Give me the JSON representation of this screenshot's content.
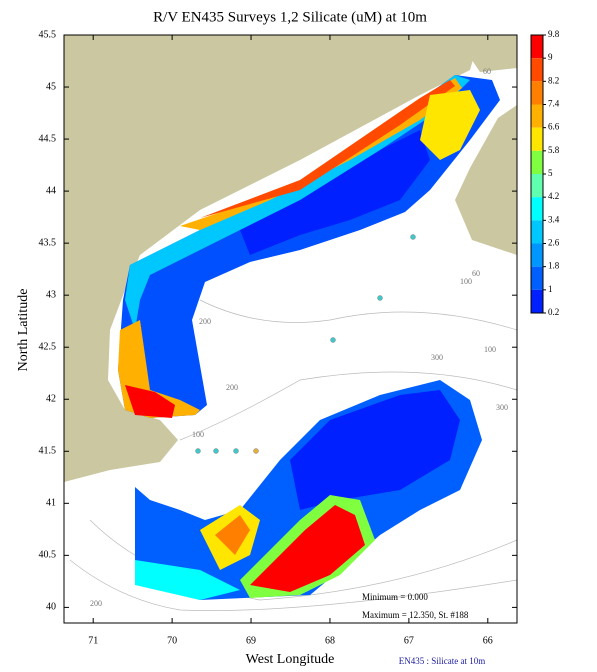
{
  "chart_data": {
    "type": "map",
    "title": "R/V EN435 Surveys 1,2 Silicate (uM) at 10m",
    "x_label": "West Longitude",
    "y_label": "North Latitude",
    "xlim": [
      71.37,
      65.63
    ],
    "xticks": [
      71,
      70,
      69,
      68,
      67,
      66
    ],
    "ylim": [
      39.85,
      45.5
    ],
    "yticks": [
      45.5,
      45,
      44.5,
      44,
      43.5,
      43,
      42.5,
      42,
      41.5,
      41,
      40.5,
      40
    ],
    "colorbar": {
      "ticks": [
        9.8,
        9,
        8.2,
        7.4,
        6.6,
        5.8,
        5,
        4.2,
        3.4,
        2.6,
        1.8,
        1,
        0.2
      ],
      "colors": [
        "#ff0000",
        "#ff4a00",
        "#ff8000",
        "#ffb000",
        "#ffe600",
        "#80ff40",
        "#60ffb0",
        "#00ffff",
        "#00c8ff",
        "#0096ff",
        "#0060ff",
        "#0020ff"
      ]
    },
    "depth_labels": [
      "60",
      "60",
      "100",
      "100",
      "200",
      "200",
      "300",
      "300",
      "100",
      "200"
    ],
    "annotations": [
      "Minimum = 0.000",
      "Maximum = 12.350, St. #188"
    ],
    "footer": "EN435 : Silicate at 10m"
  }
}
